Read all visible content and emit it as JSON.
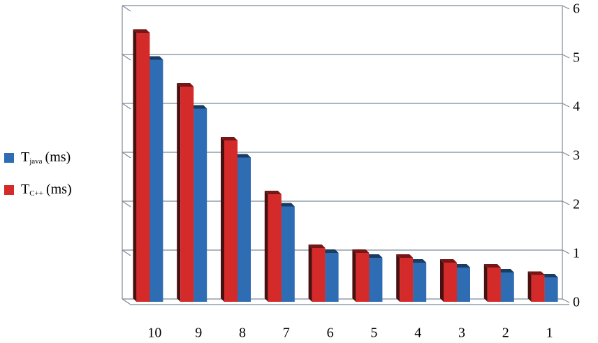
{
  "chart_data": {
    "type": "bar3d",
    "categories": [
      "10",
      "9",
      "8",
      "7",
      "6",
      "5",
      "4",
      "3",
      "2",
      "1"
    ],
    "series": [
      {
        "name": "T",
        "name_sub": "java",
        "name_suffix": "(ms)",
        "color": "#2e6db4",
        "values": [
          4.95,
          3.95,
          2.95,
          1.95,
          1.0,
          0.9,
          0.8,
          0.7,
          0.6,
          0.5
        ]
      },
      {
        "name": "T",
        "name_sub": "C++",
        "name_suffix": "(ms)",
        "color": "#d42a2a",
        "values": [
          5.5,
          4.4,
          3.3,
          2.2,
          1.1,
          1.0,
          0.9,
          0.8,
          0.7,
          0.55
        ]
      }
    ],
    "ylim": [
      0,
      6
    ],
    "yticks": [
      0,
      1,
      2,
      3,
      4,
      5,
      6
    ],
    "grid": true,
    "legend": "left"
  }
}
